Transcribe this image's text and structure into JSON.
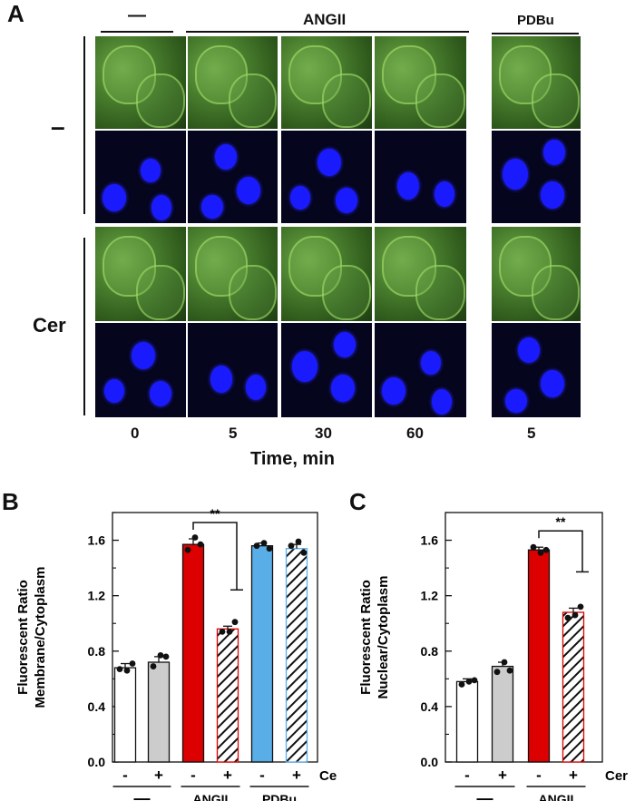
{
  "panel_a": {
    "label": "A",
    "headers": {
      "control": "—",
      "angii": "ANGII",
      "pdbu": "PDBu"
    },
    "row_labels": {
      "top": "–",
      "bottom": "Cer"
    },
    "time_ticks": [
      "0",
      "5",
      "30",
      "60",
      "5"
    ],
    "xlabel": "Time, min"
  },
  "panel_b": {
    "label": "B"
  },
  "panel_c": {
    "label": "C"
  },
  "chart_data": [
    {
      "type": "bar",
      "ylabel": "Fluorescent Ratio\nMembrane/Cytoplasm",
      "ylabel_lines": [
        "Fluorescent Ratio",
        "Membrane/Cytoplasm"
      ],
      "ylim": [
        0,
        1.8
      ],
      "yticks": [
        "0.0",
        "0.4",
        "0.8",
        "1.2",
        "1.6"
      ],
      "cer_labels": [
        "-",
        "+",
        "-",
        "+",
        "-",
        "+"
      ],
      "cer_axis_label": "Cer",
      "groups": [
        "—",
        "ANGII",
        "PDBu"
      ],
      "values": [
        0.68,
        0.72,
        1.57,
        0.96,
        1.56,
        1.54
      ],
      "errors": [
        0.03,
        0.04,
        0.04,
        0.02,
        0.02,
        0.03
      ],
      "points": [
        [
          0.67,
          0.66,
          0.71
        ],
        [
          0.69,
          0.77,
          0.76
        ],
        [
          1.53,
          1.62,
          1.57
        ],
        [
          0.94,
          0.94,
          1.01
        ],
        [
          1.56,
          1.58,
          1.54
        ],
        [
          1.56,
          1.59,
          1.51
        ]
      ],
      "colors": [
        "#ffffff",
        "#cccccc",
        "#dd0000",
        "#dd0000",
        "#5aaee8",
        "#5aaee8"
      ],
      "hatched": [
        false,
        false,
        false,
        true,
        false,
        true
      ],
      "significance": {
        "text": "**",
        "from": 2,
        "to": 3
      }
    },
    {
      "type": "bar",
      "ylabel": "Fluorescent Ratio\nNuclear/Cytoplasm",
      "ylabel_lines": [
        "Fluorescent Ratio",
        "Nuclear/Cytoplasm"
      ],
      "ylim": [
        0,
        1.8
      ],
      "yticks": [
        "0.0",
        "0.4",
        "0.8",
        "1.2",
        "1.6"
      ],
      "cer_labels": [
        "-",
        "+",
        "-",
        "+"
      ],
      "cer_axis_label": "Cer",
      "groups": [
        "—",
        "ANGII"
      ],
      "values": [
        0.58,
        0.69,
        1.53,
        1.08
      ],
      "errors": [
        0.02,
        0.03,
        0.02,
        0.03
      ],
      "points": [
        [
          0.56,
          0.58,
          0.59
        ],
        [
          0.65,
          0.72,
          0.66
        ],
        [
          1.55,
          1.51,
          1.53
        ],
        [
          1.04,
          1.06,
          1.12
        ]
      ],
      "colors": [
        "#ffffff",
        "#cccccc",
        "#dd0000",
        "#dd0000"
      ],
      "hatched": [
        false,
        false,
        false,
        true
      ],
      "significance": {
        "text": "**",
        "from": 2,
        "to": 3
      }
    }
  ]
}
